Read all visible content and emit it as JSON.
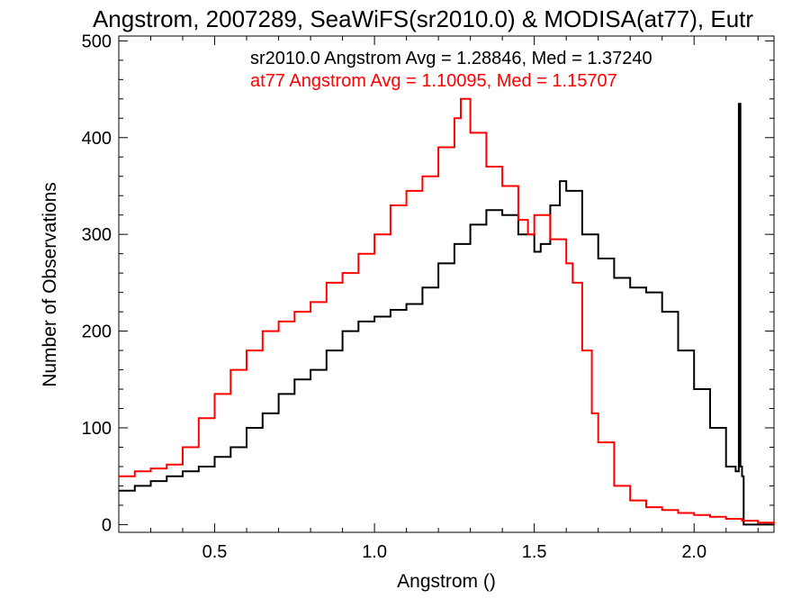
{
  "chart_data": {
    "type": "line",
    "title": "Angstrom, 2007289, SeaWiFS(sr2010.0) & MODISA(at77), Eutr",
    "xlabel": "Angstrom ()",
    "ylabel": "Number of Observations",
    "xlim": [
      0.2,
      2.25
    ],
    "ylim": [
      -8,
      505
    ],
    "xticks": [
      0.5,
      1.0,
      1.5,
      2.0
    ],
    "xtick_labels": [
      "0.5",
      "1.0",
      "1.5",
      "2.0"
    ],
    "yticks": [
      0,
      100,
      200,
      300,
      400,
      500
    ],
    "ytick_labels": [
      "0",
      "100",
      "200",
      "300",
      "400",
      "500"
    ],
    "grid": false,
    "legend_position": "top-right",
    "annotations": [
      {
        "text": "sr2010.0 Angstrom Avg = 1.28846, Med = 1.37240",
        "color": "#000000"
      },
      {
        "text": "at77 Angstrom Avg = 1.10095, Med = 1.15707",
        "color": "#ff0000"
      }
    ],
    "series": [
      {
        "color": "#000000",
        "x": [
          0.2,
          0.25,
          0.3,
          0.35,
          0.4,
          0.45,
          0.5,
          0.55,
          0.6,
          0.65,
          0.7,
          0.75,
          0.8,
          0.85,
          0.9,
          0.95,
          1.0,
          1.05,
          1.1,
          1.15,
          1.2,
          1.25,
          1.3,
          1.35,
          1.4,
          1.45,
          1.5,
          1.52,
          1.55,
          1.58,
          1.6,
          1.65,
          1.7,
          1.75,
          1.8,
          1.85,
          1.9,
          1.95,
          2.0,
          2.05,
          2.1,
          2.13,
          2.14,
          2.145,
          2.15,
          2.155,
          2.25
        ],
        "y": [
          35,
          40,
          45,
          50,
          55,
          60,
          70,
          80,
          100,
          115,
          135,
          150,
          160,
          180,
          200,
          210,
          215,
          222,
          228,
          245,
          270,
          290,
          310,
          325,
          320,
          300,
          282,
          290,
          330,
          355,
          345,
          300,
          275,
          255,
          245,
          240,
          220,
          180,
          140,
          100,
          60,
          55,
          435,
          60,
          50,
          0,
          0
        ]
      },
      {
        "color": "#ff0000",
        "x": [
          0.2,
          0.25,
          0.3,
          0.35,
          0.4,
          0.45,
          0.5,
          0.55,
          0.6,
          0.65,
          0.7,
          0.75,
          0.8,
          0.85,
          0.9,
          0.95,
          1.0,
          1.05,
          1.1,
          1.15,
          1.2,
          1.25,
          1.27,
          1.3,
          1.35,
          1.4,
          1.45,
          1.48,
          1.5,
          1.55,
          1.6,
          1.62,
          1.65,
          1.68,
          1.7,
          1.75,
          1.8,
          1.85,
          1.9,
          1.95,
          2.0,
          2.05,
          2.1,
          2.15,
          2.2,
          2.25
        ],
        "y": [
          50,
          55,
          58,
          62,
          80,
          110,
          135,
          160,
          180,
          200,
          210,
          220,
          230,
          250,
          260,
          280,
          300,
          330,
          345,
          360,
          390,
          420,
          440,
          405,
          370,
          350,
          315,
          300,
          320,
          295,
          270,
          250,
          180,
          115,
          85,
          40,
          25,
          18,
          15,
          12,
          10,
          8,
          6,
          4,
          2,
          0
        ]
      }
    ]
  }
}
